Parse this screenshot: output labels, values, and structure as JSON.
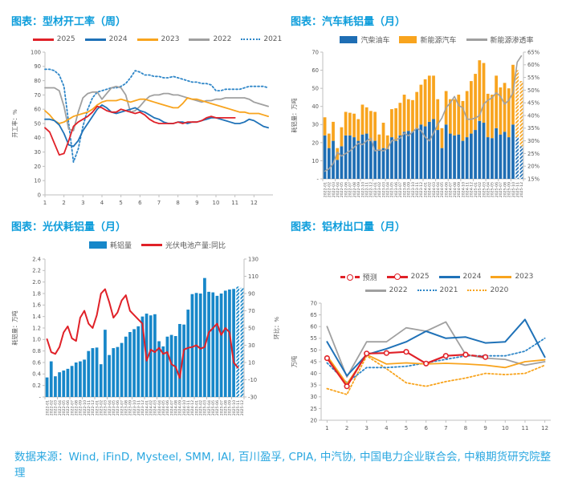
{
  "source_note": "数据来源：Wind, iFinD, Mysteel, SMM, IAI, 百川盈孚, CPIA, 中汽协, 中国电力企业联合会, 中粮期货研究院整理",
  "colors": {
    "title_blue": "#0d9ddb",
    "source_blue": "#29a7e0",
    "red": "#e02128",
    "blue": "#1f72b8",
    "orange": "#f8a41e",
    "gray": "#a0a0a0",
    "dot_blue": "#2e86c8",
    "bar_blue_dark": "#1f6eb4",
    "bar_blue_light": "#1787c9",
    "axis_text": "#595959"
  },
  "chart_data": [
    {
      "type": "line",
      "title": "图表：型材开工率（周）",
      "x": {
        "min": 1,
        "max": 13,
        "ticks": [
          1,
          2,
          3,
          4,
          5,
          6,
          7,
          8,
          9,
          10,
          11,
          12
        ]
      },
      "y_left": {
        "min": 0,
        "max": 100,
        "step": 10,
        "label": "开工率：%"
      },
      "legend": [
        {
          "label": "2025",
          "type": "line",
          "color": "#e02128"
        },
        {
          "label": "2024",
          "type": "line",
          "color": "#1f72b8"
        },
        {
          "label": "2023",
          "type": "line",
          "color": "#f8a41e"
        },
        {
          "label": "2022",
          "type": "line",
          "color": "#a0a0a0"
        },
        {
          "label": "2021",
          "type": "dot",
          "color": "#2e86c8"
        }
      ],
      "series": [
        {
          "name": "2021",
          "color": "#2e86c8",
          "dash": "2,2.6",
          "x0": 1,
          "dx": 0.25,
          "values": [
            88,
            88,
            87,
            84,
            76,
            50,
            23,
            32,
            48,
            60,
            68,
            72,
            73,
            74,
            75,
            75,
            76,
            78,
            82,
            87,
            86,
            84,
            84,
            83,
            83,
            82,
            82,
            83,
            82,
            81,
            80,
            79,
            79,
            78,
            78,
            77,
            73,
            73,
            74,
            74,
            74,
            74,
            75,
            76,
            76,
            76,
            76,
            75
          ]
        },
        {
          "name": "2022",
          "color": "#a0a0a0",
          "x0": 1,
          "dx": 0.25,
          "values": [
            75,
            75,
            75,
            73,
            62,
            46,
            45,
            58,
            68,
            71,
            72,
            72,
            67,
            71,
            75,
            76,
            75,
            70,
            58,
            59,
            62,
            66,
            69,
            70,
            70,
            71,
            71,
            70,
            70,
            69,
            68,
            67,
            66,
            65,
            66,
            66,
            67,
            67,
            68,
            68,
            68,
            68,
            68,
            67,
            65,
            64,
            63,
            62
          ]
        },
        {
          "name": "2023",
          "color": "#f8a41e",
          "x0": 1,
          "dx": 0.25,
          "values": [
            59,
            56,
            52,
            50,
            51,
            53,
            55,
            56,
            57,
            58,
            60,
            63,
            65,
            66,
            66,
            66,
            67,
            66,
            65,
            66,
            67,
            67,
            66,
            65,
            64,
            63,
            62,
            61,
            61,
            64,
            68,
            67,
            67,
            66,
            65,
            64,
            63,
            62,
            61,
            60,
            59,
            58,
            58,
            57,
            57,
            57,
            56,
            55
          ]
        },
        {
          "name": "2024",
          "color": "#1f72b8",
          "x0": 1,
          "dx": 0.25,
          "values": [
            53,
            53,
            52,
            49,
            43,
            35,
            34,
            38,
            45,
            50,
            55,
            60,
            63,
            61,
            58,
            57,
            58,
            59,
            60,
            61,
            59,
            58,
            56,
            54,
            53,
            51,
            50,
            50,
            51,
            51,
            50,
            51,
            51,
            52,
            53,
            54,
            54,
            53,
            52,
            51,
            50,
            50,
            51,
            53,
            52,
            50,
            48,
            47
          ]
        },
        {
          "name": "2025",
          "color": "#e02128",
          "x0": 1,
          "dx": 0.25,
          "values": [
            47,
            44,
            36,
            28,
            29,
            38,
            48,
            51,
            53,
            55,
            58,
            62,
            61,
            59,
            58,
            58,
            60,
            59,
            58,
            57,
            58,
            56,
            53,
            51,
            50,
            50,
            50,
            50,
            51,
            50,
            51,
            51,
            51,
            52,
            54,
            55,
            54,
            54,
            54,
            54,
            54
          ]
        }
      ]
    },
    {
      "type": "bar-line",
      "title": "图表：汽车耗铝量（月）",
      "categories": [
        "2022-01",
        "2022-02",
        "2022-03",
        "2022-04",
        "2022-05",
        "2022-06",
        "2022-07",
        "2022-08",
        "2022-09",
        "2022-10",
        "2022-11",
        "2022-12",
        "2023-01",
        "2023-02",
        "2023-03",
        "2023-04",
        "2023-05",
        "2023-06",
        "2023-07",
        "2023-08",
        "2023-09",
        "2023-10",
        "2023-11",
        "2023-12",
        "2024-01",
        "2024-02",
        "2024-03",
        "2024-04",
        "2024-05",
        "2024-06",
        "2024-07",
        "2024-08",
        "2024-09",
        "2024-10",
        "2024-11",
        "2024-12",
        "2025-01",
        "2025-02",
        "2025-03",
        "2025-04",
        "2025-05",
        "2025-06",
        "2025-07",
        "2025-08",
        "2025-09",
        "2025-10",
        "2025-11",
        "2025-12"
      ],
      "forecast_from": 46,
      "y_left": {
        "min": 0,
        "max": 70,
        "step": 10,
        "label": "耗铝量：万吨",
        "zeroDash": true
      },
      "y_right": {
        "min": 15,
        "max": 65,
        "step": 5,
        "suffix": "%"
      },
      "bars": {
        "stack": [
          {
            "name": "汽柴油车",
            "color": "#1f6eb4",
            "values": [
              24,
              17,
              21,
              10.5,
              18,
              24,
              24,
              23,
              21,
              24.5,
              25,
              21,
              21,
              15.5,
              17,
              16.5,
              23,
              21,
              24,
              26,
              26.5,
              26,
              28,
              30,
              29,
              31.5,
              33,
              27,
              17,
              30,
              25,
              24,
              24.5,
              21,
              23,
              25,
              27,
              32,
              31,
              23,
              22.5,
              28,
              24.5,
              26,
              23,
              30,
              23,
              18
            ]
          },
          {
            "name": "新能源汽车",
            "color": "#f8a41e",
            "values": [
              10,
              8,
              10.5,
              6.5,
              10.5,
              13,
              12.5,
              13,
              12,
              16.5,
              14.5,
              16.5,
              16,
              9,
              14,
              7.5,
              15.5,
              18,
              18,
              20.5,
              17.5,
              17.5,
              20,
              22,
              26,
              25.5,
              24,
              17,
              11,
              18.5,
              19,
              20,
              22,
              22,
              25.5,
              29,
              31,
              33.5,
              33,
              24,
              24,
              29,
              26,
              27,
              27,
              33,
              37,
              36
            ]
          }
        ]
      },
      "legend": [
        {
          "label": "汽柴油车",
          "type": "bar",
          "color": "#1f6eb4"
        },
        {
          "label": "新能源汽车",
          "type": "bar",
          "color": "#f8a41e"
        },
        {
          "label": "新能源渗透率",
          "type": "line",
          "color": "#a0a0a0"
        }
      ],
      "series": [
        {
          "name": "新能源渗透率",
          "color": "#a0a0a0",
          "axis": "right",
          "width": 1.6,
          "by_category": true,
          "values": [
            18,
            19,
            21,
            25.5,
            24,
            25,
            26,
            27.5,
            29,
            28.5,
            30,
            31,
            26,
            26.5,
            26,
            27,
            30,
            30.5,
            31,
            33,
            32,
            33.5,
            35,
            34,
            31.5,
            30,
            33,
            36.5,
            39,
            43,
            45,
            47.5,
            44,
            43,
            38.5,
            38.5,
            39,
            40,
            44.5,
            46,
            47,
            49,
            47.5,
            44.5,
            46,
            49,
            61,
            63.5
          ]
        }
      ]
    },
    {
      "type": "bar-line",
      "title": "图表：光伏耗铝量（月）",
      "categories": [
        "2022-01",
        "2022-02",
        "2022-03",
        "2022-04",
        "2022-05",
        "2022-06",
        "2022-07",
        "2022-08",
        "2022-09",
        "2022-10",
        "2022-11",
        "2022-12",
        "2023-01",
        "2023-02",
        "2023-03",
        "2023-04",
        "2023-05",
        "2023-06",
        "2023-07",
        "2023-08",
        "2023-09",
        "2023-10",
        "2023-11",
        "2023-12",
        "2024-01",
        "2024-02",
        "2024-03",
        "2024-04",
        "2024-05",
        "2024-06",
        "2024-07",
        "2024-08",
        "2024-09",
        "2024-10",
        "2024-11",
        "2024-12",
        "2025-01",
        "2025-02",
        "2025-03",
        "2025-04",
        "2025-05",
        "2025-06",
        "2025-07",
        "2025-08",
        "2025-09",
        "2025-10",
        "2025-11",
        "2025-12"
      ],
      "forecast_from": 46,
      "y_left": {
        "min": 0,
        "max": 2.4,
        "step": 0.2,
        "dec": 1,
        "label": "耗铝量：万吨",
        "zeroDash": true
      },
      "y_right": {
        "min": -30,
        "max": 130,
        "step": 20,
        "label": "环比：%"
      },
      "bars": {
        "stack": [
          {
            "name": "耗铝量",
            "color": "#1787c9",
            "values": [
              0.34,
              0.62,
              0.36,
              0.43,
              0.46,
              0.49,
              0.54,
              0.6,
              0.62,
              0.65,
              0.8,
              0.85,
              0.86,
              0.57,
              1.17,
              0.73,
              0.85,
              0.87,
              0.94,
              1.05,
              1.13,
              1.18,
              1.23,
              1.4,
              1.45,
              1.42,
              1.44,
              0.97,
              0.88,
              1.05,
              1.08,
              1.06,
              1.27,
              1.26,
              1.52,
              1.79,
              1.81,
              1.8,
              2.07,
              1.83,
              1.82,
              1.76,
              1.8,
              1.85,
              1.87,
              1.88,
              1.92,
              1.9
            ]
          }
        ]
      },
      "legend": [
        {
          "label": "耗铝量",
          "type": "bar",
          "color": "#1787c9"
        },
        {
          "label": "光伏电池产量:同比",
          "type": "line",
          "color": "#e02128"
        }
      ],
      "series": [
        {
          "name": "光伏电池产量:同比",
          "color": "#e02128",
          "axis": "right",
          "width": 2,
          "by_category": true,
          "values": [
            37,
            22,
            20,
            28,
            45,
            52,
            38,
            35,
            62,
            70,
            55,
            50,
            65,
            90,
            95,
            80,
            62,
            68,
            82,
            88,
            70,
            65,
            60,
            55,
            12,
            25,
            22,
            27,
            20,
            22,
            8,
            5,
            -8,
            25,
            27,
            28,
            30,
            26,
            28,
            45,
            50,
            55,
            42,
            50,
            45,
            10,
            4,
            null
          ]
        }
      ]
    },
    {
      "type": "line",
      "title": "图表：铝材出口量（月）",
      "x": {
        "min": 0.7,
        "max": 12.3,
        "ticks": [
          1,
          2,
          3,
          4,
          5,
          6,
          7,
          8,
          9,
          10,
          11,
          12
        ]
      },
      "y_left": {
        "min": 20,
        "max": 70,
        "step": 5,
        "label": "万吨"
      },
      "legend": [
        {
          "label": "预测",
          "type": "dashc",
          "color": "#e02128"
        },
        {
          "label": "2025",
          "type": "linec",
          "color": "#e02128"
        },
        {
          "label": "2024",
          "type": "line",
          "color": "#1f72b8"
        },
        {
          "label": "2023",
          "type": "line",
          "color": "#f8a41e"
        },
        {
          "label": "2022",
          "type": "line",
          "color": "#a0a0a0"
        },
        {
          "label": "2021",
          "type": "dot",
          "color": "#2e86c8"
        },
        {
          "label": "2020",
          "type": "dot",
          "color": "#f8a41e"
        }
      ],
      "legend_rows": [
        4,
        3
      ],
      "series": [
        {
          "name": "2020",
          "color": "#f8a41e",
          "dash": "2,2.6",
          "x0": 1,
          "dx": 1,
          "values": [
            33.5,
            31,
            47.5,
            42,
            36,
            34.5,
            36.5,
            38,
            40,
            39.5,
            40,
            43.5
          ]
        },
        {
          "name": "2021",
          "color": "#2e86c8",
          "dash": "2,2.6",
          "x0": 1,
          "dx": 1,
          "values": [
            44.5,
            36,
            42.5,
            42.5,
            43,
            44.5,
            46,
            47.5,
            47.5,
            47.5,
            49.5,
            55
          ]
        },
        {
          "name": "2022",
          "color": "#a0a0a0",
          "x0": 1,
          "dx": 1,
          "values": [
            60,
            38.5,
            53.5,
            53.5,
            59.5,
            58,
            62,
            48,
            46.5,
            46,
            43.5,
            45
          ]
        },
        {
          "name": "2023",
          "color": "#f8a41e",
          "x0": 1,
          "dx": 1,
          "values": [
            47.5,
            35.5,
            48,
            44,
            44.5,
            44,
            44.3,
            44,
            43.5,
            42.5,
            45,
            45.8
          ]
        },
        {
          "name": "2024",
          "color": "#1f72b8",
          "width": 2,
          "x0": 1,
          "dx": 1,
          "values": [
            53.5,
            39,
            48,
            50.5,
            53.5,
            58,
            55,
            55.5,
            53,
            53.5,
            63,
            47
          ]
        },
        {
          "name": "2025",
          "color": "#e02128",
          "width": 2.2,
          "marker": true,
          "x0": 1,
          "dx": 1,
          "values": [
            46.5,
            34.5,
            48.5,
            48.7,
            49.2,
            44.2,
            47.5,
            48
          ]
        },
        {
          "name": "预测",
          "color": "#e02128",
          "width": 2,
          "dash": "5,3",
          "marker": true,
          "x": [
            8,
            9
          ],
          "values": [
            48,
            47
          ]
        }
      ]
    }
  ]
}
